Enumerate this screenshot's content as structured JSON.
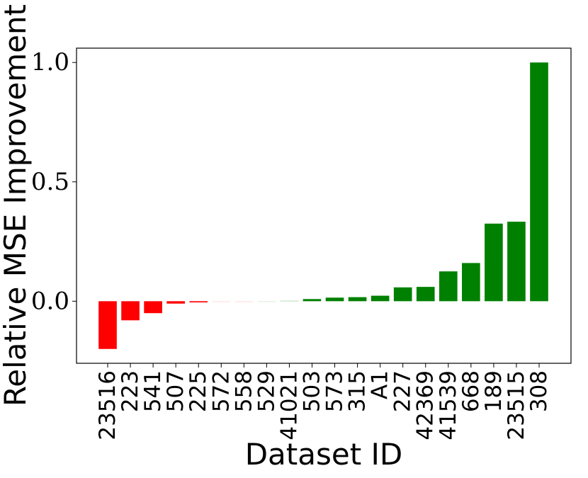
{
  "chart_data": {
    "type": "bar",
    "title": "",
    "xlabel": "Dataset ID",
    "ylabel": "Relative MSE Improvement",
    "categories": [
      "23516",
      "223",
      "541",
      "507",
      "225",
      "572",
      "558",
      "529",
      "41021",
      "503",
      "573",
      "315",
      "A1",
      "227",
      "42369",
      "41539",
      "668",
      "189",
      "23515",
      "308"
    ],
    "values": [
      -0.2,
      -0.08,
      -0.05,
      -0.01,
      -0.005,
      -0.001,
      -0.001,
      0.001,
      0.003,
      0.009,
      0.015,
      0.017,
      0.023,
      0.058,
      0.06,
      0.125,
      0.16,
      0.325,
      0.333,
      1.0
    ],
    "colors": [
      "#ff0000",
      "#ff0000",
      "#ff0000",
      "#ff0000",
      "#ff0000",
      "#ffe6e6",
      "#ffe6e6",
      "#e6f3e6",
      "#cfe7cf",
      "#008000",
      "#008000",
      "#008000",
      "#008000",
      "#008000",
      "#008000",
      "#008000",
      "#008000",
      "#008000",
      "#008000",
      "#008000"
    ],
    "ylim": [
      -0.26,
      1.06
    ],
    "yticks": [
      0.0,
      0.5,
      1.0
    ],
    "ytick_labels": [
      "0.0",
      "0.5",
      "1.0"
    ],
    "grid": false,
    "legend": "none"
  }
}
